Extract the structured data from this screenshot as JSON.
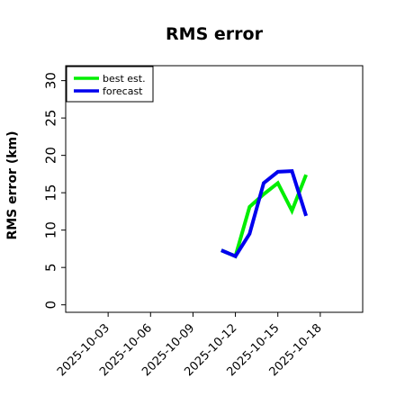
{
  "chart_data": {
    "type": "line",
    "title": "RMS error",
    "xlabel": "",
    "ylabel": "RMS error (km)",
    "xlim": [
      "2025-09-30",
      "2025-10-21"
    ],
    "ylim": [
      -1,
      32
    ],
    "yticks": [
      0,
      5,
      10,
      15,
      20,
      25,
      30
    ],
    "xticks": [
      "2025-10-03",
      "2025-10-06",
      "2025-10-09",
      "2025-10-12",
      "2025-10-15",
      "2025-10-18"
    ],
    "highlight_tick": "2025-10-09",
    "highlight_color": "#2e8b22",
    "legend_position": "upper-left",
    "grid": false,
    "series": [
      {
        "name": "best est.",
        "color": "#00ee00",
        "x": [
          "2025-10-11",
          "2025-10-12",
          "2025-10-13",
          "2025-10-14",
          "2025-10-15",
          "2025-10-16",
          "2025-10-17"
        ],
        "y": [
          7.3,
          6.5,
          13.1,
          14.8,
          16.3,
          12.6,
          17.4
        ]
      },
      {
        "name": "forecast",
        "color": "#0000ee",
        "x": [
          "2025-10-11",
          "2025-10-12",
          "2025-10-13",
          "2025-10-14",
          "2025-10-15",
          "2025-10-16",
          "2025-10-17"
        ],
        "y": [
          7.3,
          6.5,
          9.5,
          16.3,
          17.8,
          17.9,
          11.9
        ]
      }
    ]
  }
}
